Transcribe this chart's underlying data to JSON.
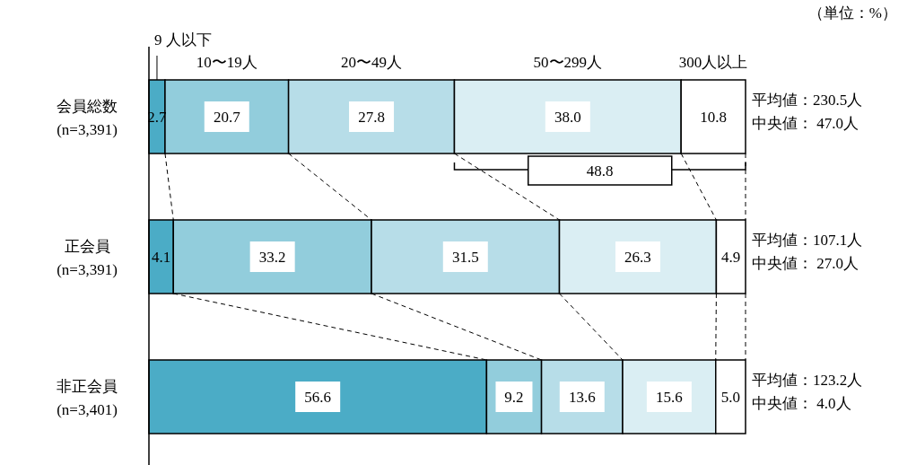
{
  "chart_data": {
    "type": "bar",
    "orientation": "horizontal",
    "stacked": true,
    "categories": [
      "会員総数\n(n=3,391)",
      "正会員\n(n=3,391)",
      "非正会員\n(n=3,401)"
    ],
    "xlim": [
      0,
      100
    ],
    "series": [
      {
        "name": "9 人以下",
        "color": "#4bacc6",
        "values": [
          2.7,
          4.1,
          56.6
        ],
        "value_labels": [
          "2.7",
          "4.1",
          "56.6"
        ]
      },
      {
        "name": "10〜19人",
        "color": "#92cddc",
        "values": [
          20.7,
          33.2,
          9.2
        ],
        "value_labels": [
          "20.7",
          "33.2",
          "9.2"
        ]
      },
      {
        "name": "20〜49人",
        "color": "#b7dde8",
        "values": [
          27.8,
          31.5,
          13.6
        ],
        "value_labels": [
          "27.8",
          "31.5",
          "13.6"
        ]
      },
      {
        "name": "50〜299人",
        "color": "#daeef3",
        "values": [
          38.0,
          26.3,
          15.6
        ],
        "value_labels": [
          "38.0",
          "26.3",
          "15.6"
        ]
      },
      {
        "name": "300人以上",
        "color": "#ffffff",
        "values": [
          10.8,
          4.9,
          5.0
        ],
        "value_labels": [
          "10.8",
          "4.9",
          "5.0"
        ]
      }
    ],
    "annotations": [
      "（単位：%）",
      "48.8",
      "平均値：230.5人",
      "中央値：  47.0人",
      "平均値：107.1人",
      "中央値：  27.0人",
      "平均値：123.2人",
      "中央値：    4.0人"
    ]
  }
}
